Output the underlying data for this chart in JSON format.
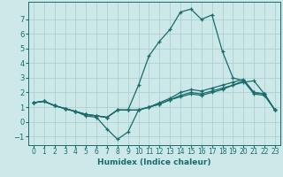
{
  "title": "",
  "xlabel": "Humidex (Indice chaleur)",
  "bg_color": "#cce8e8",
  "line_color": "#1a6b6b",
  "grid_color": "#aacccc",
  "xlim": [
    -0.5,
    23.5
  ],
  "ylim": [
    -1.6,
    8.2
  ],
  "yticks": [
    -1,
    0,
    1,
    2,
    3,
    4,
    5,
    6,
    7
  ],
  "xticks": [
    0,
    1,
    2,
    3,
    4,
    5,
    6,
    7,
    8,
    9,
    10,
    11,
    12,
    13,
    14,
    15,
    16,
    17,
    18,
    19,
    20,
    21,
    22,
    23
  ],
  "lines": [
    {
      "x": [
        0,
        1,
        2,
        3,
        4,
        5,
        6,
        7,
        8,
        9,
        10,
        11,
        12,
        13,
        14,
        15,
        16,
        17,
        18,
        19,
        20,
        21,
        22,
        23
      ],
      "y": [
        1.3,
        1.4,
        1.1,
        0.9,
        0.7,
        0.4,
        0.3,
        -0.5,
        -1.2,
        -0.7,
        0.8,
        1.0,
        1.2,
        1.5,
        1.7,
        1.9,
        1.8,
        2.0,
        2.2,
        2.5,
        2.7,
        2.8,
        1.9,
        0.8
      ]
    },
    {
      "x": [
        0,
        1,
        2,
        3,
        4,
        5,
        6,
        7,
        8,
        9,
        10,
        11,
        12,
        13,
        14,
        15,
        16,
        17,
        18,
        19,
        20,
        21,
        22,
        23
      ],
      "y": [
        1.3,
        1.4,
        1.1,
        0.9,
        0.7,
        0.5,
        0.4,
        0.3,
        0.8,
        0.8,
        0.8,
        1.0,
        1.2,
        1.5,
        1.8,
        2.0,
        1.9,
        2.1,
        2.3,
        2.5,
        2.8,
        1.9,
        1.8,
        0.8
      ]
    },
    {
      "x": [
        0,
        1,
        2,
        3,
        4,
        5,
        6,
        7,
        8,
        9,
        10,
        11,
        12,
        13,
        14,
        15,
        16,
        17,
        18,
        19,
        20,
        21,
        22,
        23
      ],
      "y": [
        1.3,
        1.4,
        1.1,
        0.9,
        0.7,
        0.5,
        0.4,
        0.3,
        0.8,
        0.8,
        2.5,
        4.5,
        5.5,
        6.3,
        7.5,
        7.7,
        7.0,
        7.3,
        4.8,
        3.0,
        2.8,
        2.0,
        1.9,
        0.8
      ]
    },
    {
      "x": [
        0,
        1,
        2,
        3,
        4,
        5,
        6,
        7,
        8,
        9,
        10,
        11,
        12,
        13,
        14,
        15,
        16,
        17,
        18,
        19,
        20,
        21,
        22,
        23
      ],
      "y": [
        1.3,
        1.4,
        1.1,
        0.9,
        0.7,
        0.5,
        0.4,
        0.3,
        0.8,
        0.8,
        0.8,
        1.0,
        1.3,
        1.6,
        2.0,
        2.2,
        2.1,
        2.3,
        2.5,
        2.7,
        2.9,
        2.0,
        1.9,
        0.8
      ]
    }
  ]
}
